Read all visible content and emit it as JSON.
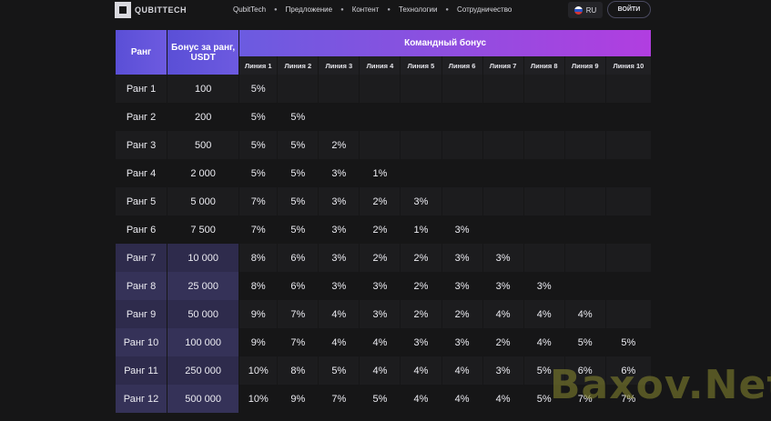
{
  "header": {
    "logo_text": "QUBITTECH",
    "nav": [
      "QubitTech",
      "Предложение",
      "Контент",
      "Технологии",
      "Сотрудничество"
    ],
    "lang": "RU",
    "login": "ВОЙТИ"
  },
  "table": {
    "rank_header": "Ранг",
    "bonus_header": "Бонус за ранг, USDT",
    "team_header": "Командный бонус",
    "lines": [
      "Линия 1",
      "Линия 2",
      "Линия 3",
      "Линия 4",
      "Линия 5",
      "Линия 6",
      "Линия 7",
      "Линия 8",
      "Линия 9",
      "Линия 10"
    ],
    "rows": [
      {
        "rank": "Ранг 1",
        "bonus": "100",
        "cells": [
          "5%",
          "",
          "",
          "",
          "",
          "",
          "",
          "",
          "",
          ""
        ]
      },
      {
        "rank": "Ранг 2",
        "bonus": "200",
        "cells": [
          "5%",
          "5%",
          "",
          "",
          "",
          "",
          "",
          "",
          "",
          ""
        ]
      },
      {
        "rank": "Ранг 3",
        "bonus": "500",
        "cells": [
          "5%",
          "5%",
          "2%",
          "",
          "",
          "",
          "",
          "",
          "",
          ""
        ]
      },
      {
        "rank": "Ранг 4",
        "bonus": "2 000",
        "cells": [
          "5%",
          "5%",
          "3%",
          "1%",
          "",
          "",
          "",
          "",
          "",
          ""
        ]
      },
      {
        "rank": "Ранг 5",
        "bonus": "5 000",
        "cells": [
          "7%",
          "5%",
          "3%",
          "2%",
          "3%",
          "",
          "",
          "",
          "",
          ""
        ]
      },
      {
        "rank": "Ранг 6",
        "bonus": "7 500",
        "cells": [
          "7%",
          "5%",
          "3%",
          "2%",
          "1%",
          "3%",
          "",
          "",
          "",
          ""
        ]
      },
      {
        "rank": "Ранг 7",
        "bonus": "10 000",
        "cells": [
          "8%",
          "6%",
          "3%",
          "2%",
          "2%",
          "3%",
          "3%",
          "",
          "",
          ""
        ]
      },
      {
        "rank": "Ранг 8",
        "bonus": "25 000",
        "cells": [
          "8%",
          "6%",
          "3%",
          "3%",
          "2%",
          "3%",
          "3%",
          "3%",
          "",
          ""
        ]
      },
      {
        "rank": "Ранг 9",
        "bonus": "50 000",
        "cells": [
          "9%",
          "7%",
          "4%",
          "3%",
          "2%",
          "2%",
          "4%",
          "4%",
          "4%",
          ""
        ]
      },
      {
        "rank": "Ранг 10",
        "bonus": "100 000",
        "cells": [
          "9%",
          "7%",
          "4%",
          "4%",
          "3%",
          "3%",
          "2%",
          "4%",
          "5%",
          "5%"
        ]
      },
      {
        "rank": "Ранг 11",
        "bonus": "250 000",
        "cells": [
          "10%",
          "8%",
          "5%",
          "4%",
          "4%",
          "4%",
          "3%",
          "5%",
          "6%",
          "6%"
        ]
      },
      {
        "rank": "Ранг 12",
        "bonus": "500 000",
        "cells": [
          "10%",
          "9%",
          "7%",
          "5%",
          "4%",
          "4%",
          "4%",
          "5%",
          "7%",
          "7%"
        ]
      }
    ],
    "highlight_from": 6
  },
  "watermark": "Baxov.Net"
}
